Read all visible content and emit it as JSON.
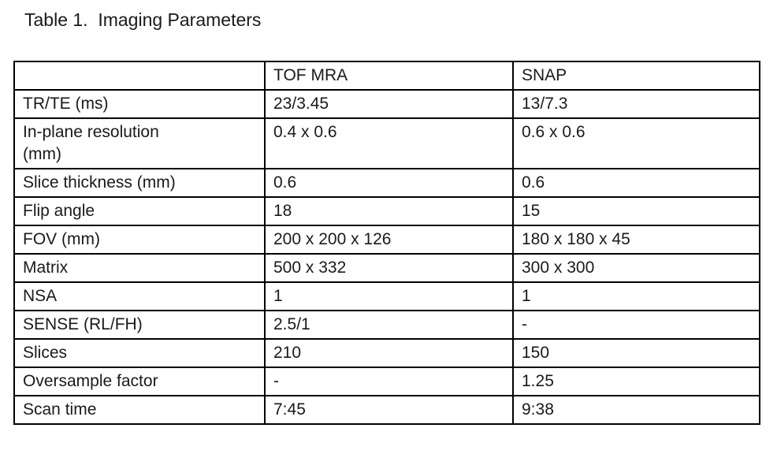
{
  "title": "Table 1.  Imaging Parameters",
  "chart_data": {
    "type": "table",
    "title": "Table 1.  Imaging Parameters",
    "columns": [
      "",
      "TOF MRA",
      "SNAP"
    ],
    "rows": [
      {
        "label": "TR/TE (ms)",
        "tof_mra": "23/3.45",
        "snap": "13/7.3"
      },
      {
        "label": "In-plane resolution\n(mm)",
        "tof_mra": "0.4 x 0.6",
        "snap": "0.6 x 0.6"
      },
      {
        "label": "Slice thickness (mm)",
        "tof_mra": "0.6",
        "snap": "0.6"
      },
      {
        "label": "Flip angle",
        "tof_mra": "18",
        "snap": "15"
      },
      {
        "label": "FOV (mm)",
        "tof_mra": "200 x 200 x 126",
        "snap": "180 x 180 x 45"
      },
      {
        "label": "Matrix",
        "tof_mra": "500 x 332",
        "snap": "300 x 300"
      },
      {
        "label": "NSA",
        "tof_mra": "1",
        "snap": "1"
      },
      {
        "label": "SENSE (RL/FH)",
        "tof_mra": "2.5/1",
        "snap": "-"
      },
      {
        "label": "Slices",
        "tof_mra": "210",
        "snap": "150"
      },
      {
        "label": "Oversample factor",
        "tof_mra": "-",
        "snap": "1.25"
      },
      {
        "label": "Scan time",
        "tof_mra": "7:45",
        "snap": "9:38"
      }
    ],
    "text_color": "#1a1a1a",
    "border_color": "#000000",
    "background_color": "#ffffff"
  }
}
